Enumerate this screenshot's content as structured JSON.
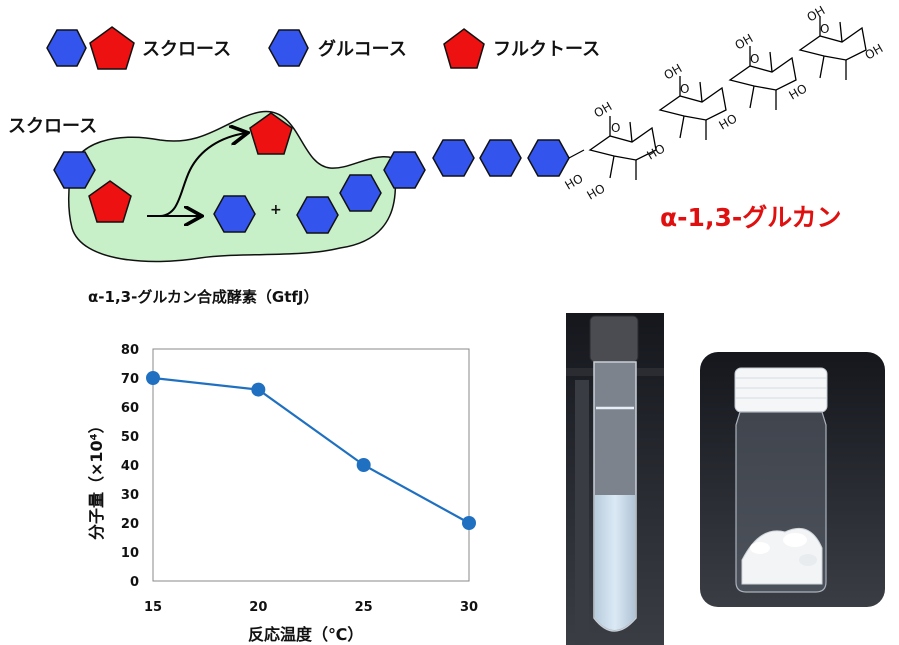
{
  "legend": {
    "sucrose": "スクロース",
    "glucose": "グルコース",
    "fructose": "フルクトース"
  },
  "scheme": {
    "substrate_label": "スクロース",
    "plus": "+",
    "enzyme_label": "α-1,3-グルカン合成酵素（GtfJ）",
    "product_label": "α-1,3-グルカン",
    "chem_labels": [
      "HO",
      "O",
      "OH"
    ]
  },
  "colors": {
    "glucose": "#3355ee",
    "fructose": "#ee1111",
    "enzyme": "#c8f0c8",
    "series": "#1f70c1",
    "product_text": "#e01010"
  },
  "chart_data": {
    "type": "line",
    "x": [
      15,
      20,
      25,
      30
    ],
    "values": [
      70,
      66,
      40,
      20
    ],
    "xlabel": "反応温度（℃）",
    "ylabel": "分子量（×10⁴）",
    "xticks": [
      15,
      20,
      25,
      30
    ],
    "yticks": [
      0,
      10,
      20,
      30,
      40,
      50,
      60,
      70,
      80
    ],
    "ylim": [
      0,
      80
    ],
    "grid": false
  }
}
